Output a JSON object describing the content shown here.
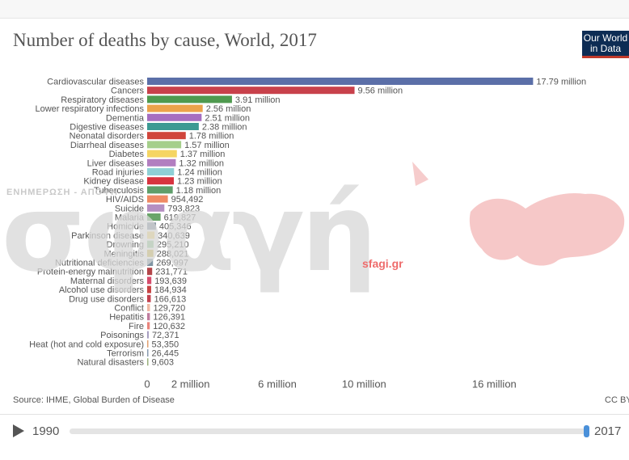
{
  "header": {
    "title": "Number of deaths by cause, World, 2017",
    "logo_line1": "Our World",
    "logo_line2": "in Data"
  },
  "watermark": {
    "text": "σφαγή",
    "sub": "ΕΝΗΜΕΡΩΣΗ - ΑΠΟΨΗ",
    "url": "sfagi.gr"
  },
  "footer": {
    "source": "Source: IHME, Global Burden of Disease",
    "license": "CC BY"
  },
  "timeline": {
    "start_year": "1990",
    "end_year": "2017",
    "position": 1.0
  },
  "chart_data": {
    "type": "bar",
    "orientation": "horizontal",
    "title": "Number of deaths by cause, World, 2017",
    "xlim": [
      0,
      18000000
    ],
    "x_ticks": [
      {
        "value": 0,
        "label": "0"
      },
      {
        "value": 2000000,
        "label": "2 million"
      },
      {
        "value": 6000000,
        "label": "6 million"
      },
      {
        "value": 10000000,
        "label": "10 million"
      },
      {
        "value": 16000000,
        "label": "16 million"
      }
    ],
    "bars": [
      {
        "category": "Cardiovascular diseases",
        "value": 17790000,
        "label": "17.79 million",
        "color": "#5b6fa8"
      },
      {
        "category": "Cancers",
        "value": 9560000,
        "label": "9.56 million",
        "color": "#c8414b"
      },
      {
        "category": "Respiratory diseases",
        "value": 3910000,
        "label": "3.91 million",
        "color": "#4f9a4f"
      },
      {
        "category": "Lower respiratory infections",
        "value": 2560000,
        "label": "2.56 million",
        "color": "#eca34a"
      },
      {
        "category": "Dementia",
        "value": 2510000,
        "label": "2.51 million",
        "color": "#a66ec0"
      },
      {
        "category": "Digestive diseases",
        "value": 2380000,
        "label": "2.38 million",
        "color": "#3c9a93"
      },
      {
        "category": "Neonatal disorders",
        "value": 1780000,
        "label": "1.78 million",
        "color": "#d0453b"
      },
      {
        "category": "Diarrheal diseases",
        "value": 1570000,
        "label": "1.57 million",
        "color": "#a5cf8b"
      },
      {
        "category": "Diabetes",
        "value": 1370000,
        "label": "1.37 million",
        "color": "#f5d563"
      },
      {
        "category": "Liver diseases",
        "value": 1320000,
        "label": "1.32 million",
        "color": "#b27ec0"
      },
      {
        "category": "Road injuries",
        "value": 1240000,
        "label": "1.24 million",
        "color": "#8fd0d6"
      },
      {
        "category": "Kidney disease",
        "value": 1230000,
        "label": "1.23 million",
        "color": "#d8343f"
      },
      {
        "category": "Tuberculosis",
        "value": 1180000,
        "label": "1.18 million",
        "color": "#5f9e6a"
      },
      {
        "category": "HIV/AIDS",
        "value": 954492,
        "label": "954,492",
        "color": "#ef8a64"
      },
      {
        "category": "Suicide",
        "value": 793823,
        "label": "793,823",
        "color": "#b58fc2"
      },
      {
        "category": "Malaria",
        "value": 619827,
        "label": "619,827",
        "color": "#6aa56a"
      },
      {
        "category": "Homicide",
        "value": 405346,
        "label": "405,346",
        "color": "#7a8b98"
      },
      {
        "category": "Parkinson disease",
        "value": 340639,
        "label": "340,639",
        "color": "#f3d470"
      },
      {
        "category": "Drowning",
        "value": 295210,
        "label": "295,210",
        "color": "#8fc48d"
      },
      {
        "category": "Meningitis",
        "value": 288021,
        "label": "288,021",
        "color": "#c9b23a"
      },
      {
        "category": "Nutritional deficiencies",
        "value": 269997,
        "label": "269,997",
        "color": "#7f95a3"
      },
      {
        "category": "Protein-energy malnutrition",
        "value": 231771,
        "label": "231,771",
        "color": "#b34549"
      },
      {
        "category": "Maternal disorders",
        "value": 193639,
        "label": "193,639",
        "color": "#d64b6c"
      },
      {
        "category": "Alcohol use disorders",
        "value": 184934,
        "label": "184,934",
        "color": "#c74343"
      },
      {
        "category": "Drug use disorders",
        "value": 166613,
        "label": "166,613",
        "color": "#c2424f"
      },
      {
        "category": "Conflict",
        "value": 129720,
        "label": "129,720",
        "color": "#f0b9a4"
      },
      {
        "category": "Hepatitis",
        "value": 126391,
        "label": "126,391",
        "color": "#c07b9e"
      },
      {
        "category": "Fire",
        "value": 120632,
        "label": "120,632",
        "color": "#e9847c"
      },
      {
        "category": "Poisonings",
        "value": 72371,
        "label": "72,371",
        "color": "#a49bbf"
      },
      {
        "category": "Heat (hot and cold exposure)",
        "value": 53350,
        "label": "53,350",
        "color": "#e0a070"
      },
      {
        "category": "Terrorism",
        "value": 26445,
        "label": "26,445",
        "color": "#8a9bb0"
      },
      {
        "category": "Natural disasters",
        "value": 9603,
        "label": "9,603",
        "color": "#9ab07c"
      }
    ]
  }
}
